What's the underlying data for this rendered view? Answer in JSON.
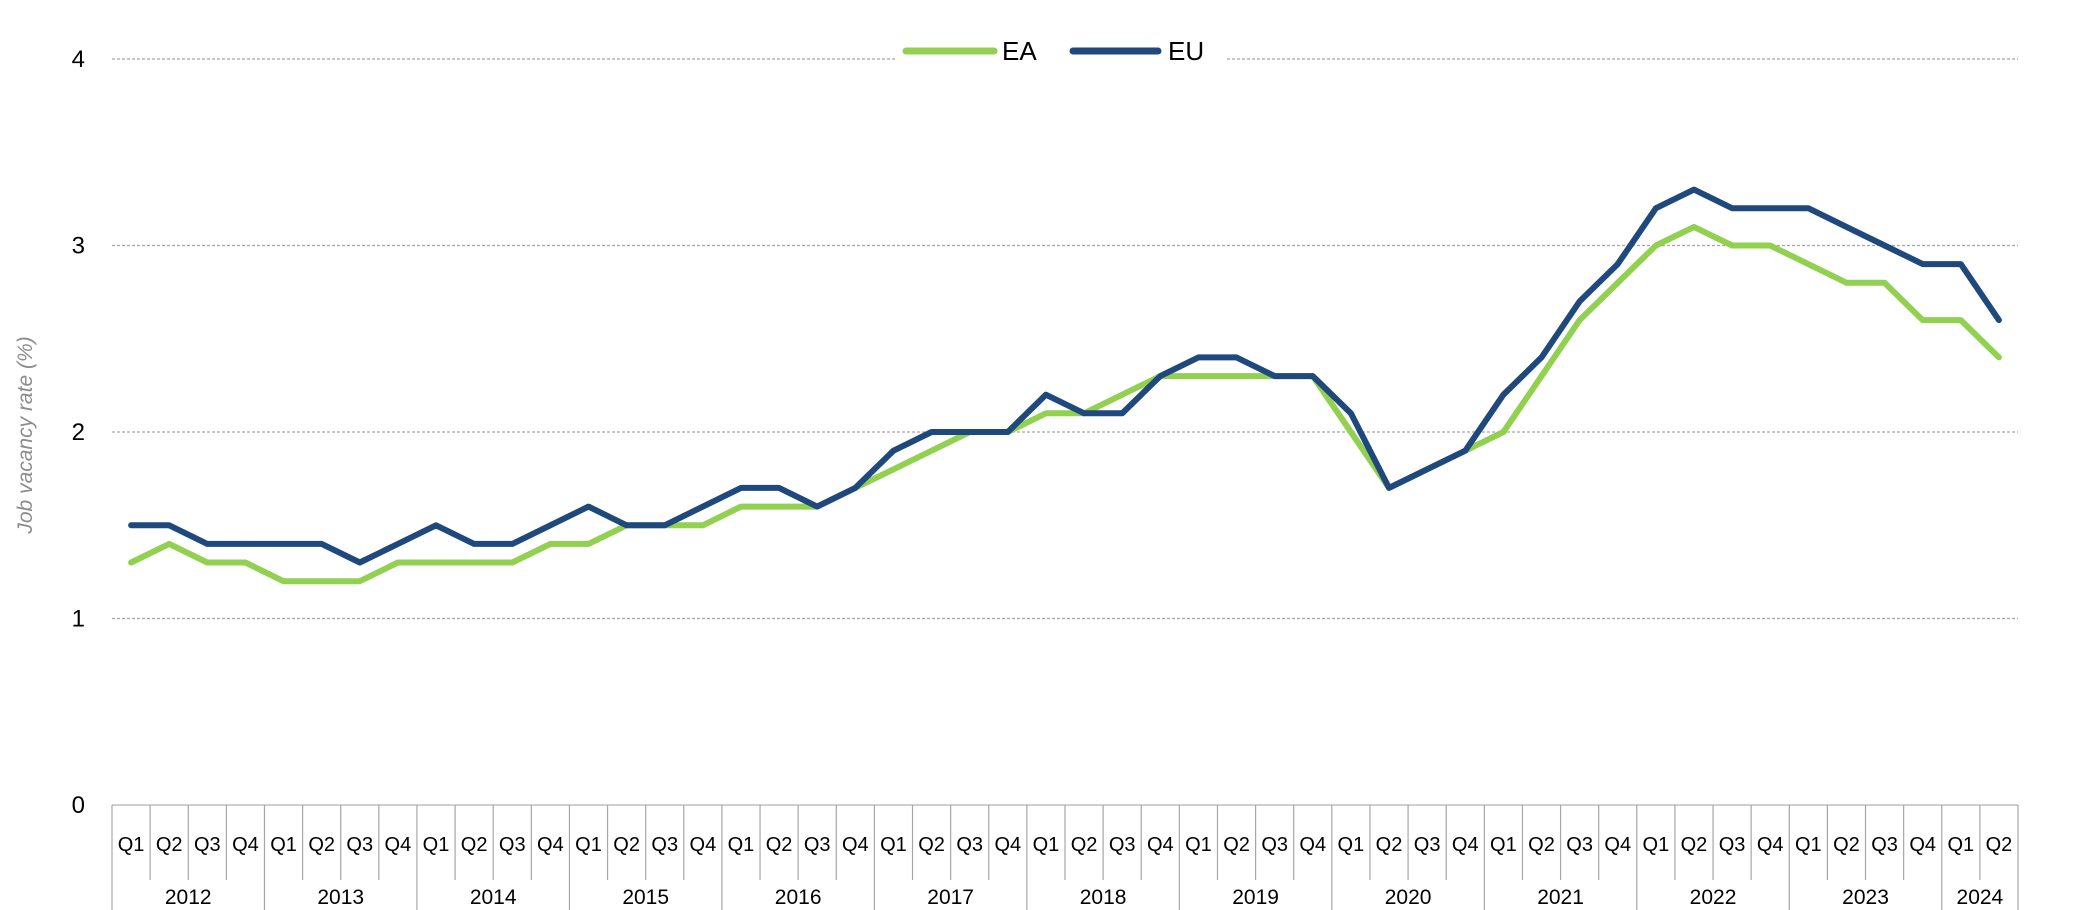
{
  "chart_data": {
    "type": "line",
    "ylabel": "Job vacancy rate (%)",
    "xlabel": "",
    "ylim": [
      0,
      4
    ],
    "yticks": [
      "0",
      "1",
      "2",
      "3",
      "4"
    ],
    "grid": true,
    "legend_position": "top-center",
    "years": [
      "2012",
      "2013",
      "2014",
      "2015",
      "2016",
      "2017",
      "2018",
      "2019",
      "2020",
      "2021",
      "2022",
      "2023",
      "2024"
    ],
    "quarters": [
      "Q1",
      "Q2",
      "Q3",
      "Q4"
    ],
    "last_year_quarters": 2,
    "series": [
      {
        "name": "EA",
        "color": "#92D050",
        "values": [
          1.3,
          1.4,
          1.3,
          1.3,
          1.2,
          1.2,
          1.2,
          1.3,
          1.3,
          1.3,
          1.3,
          1.4,
          1.4,
          1.5,
          1.5,
          1.5,
          1.6,
          1.6,
          1.6,
          1.7,
          1.8,
          1.9,
          2.0,
          2.0,
          2.1,
          2.1,
          2.2,
          2.3,
          2.3,
          2.3,
          2.3,
          2.3,
          2.0,
          1.7,
          1.8,
          1.9,
          2.0,
          2.3,
          2.6,
          2.8,
          3.0,
          3.1,
          3.0,
          3.0,
          2.9,
          2.8,
          2.8,
          2.6,
          2.6,
          2.4
        ]
      },
      {
        "name": "EU",
        "color": "#1F497D",
        "values": [
          1.5,
          1.5,
          1.4,
          1.4,
          1.4,
          1.4,
          1.3,
          1.4,
          1.5,
          1.4,
          1.4,
          1.5,
          1.6,
          1.5,
          1.5,
          1.6,
          1.7,
          1.7,
          1.6,
          1.7,
          1.9,
          2.0,
          2.0,
          2.0,
          2.2,
          2.1,
          2.1,
          2.3,
          2.4,
          2.4,
          2.3,
          2.3,
          2.1,
          1.7,
          1.8,
          1.9,
          2.2,
          2.4,
          2.7,
          2.9,
          3.2,
          3.3,
          3.2,
          3.2,
          3.2,
          3.1,
          3.0,
          2.9,
          2.9,
          2.6
        ]
      }
    ]
  }
}
